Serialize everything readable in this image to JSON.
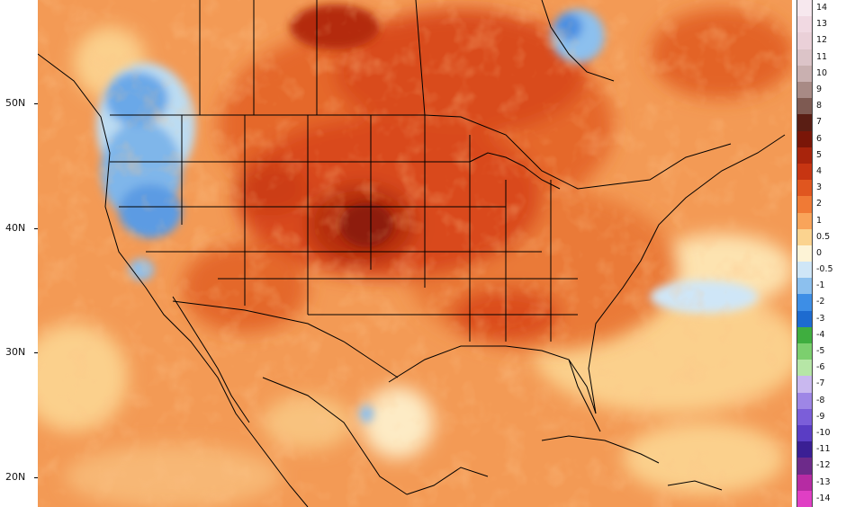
{
  "map": {
    "type": "temperature-anomaly",
    "region": "North America"
  },
  "lat_axis": {
    "labels": [
      {
        "text": "50N",
        "lat": 50
      },
      {
        "text": "40N",
        "lat": 40
      },
      {
        "text": "30N",
        "lat": 30
      },
      {
        "text": "20N",
        "lat": 20
      }
    ]
  },
  "colorbar": {
    "entries": [
      {
        "label": "14",
        "color": "#f7e8ee"
      },
      {
        "label": "13",
        "color": "#f1d9e2"
      },
      {
        "label": "12",
        "color": "#ead0d8"
      },
      {
        "label": "11",
        "color": "#dcc4c8"
      },
      {
        "label": "10",
        "color": "#c9b0b0"
      },
      {
        "label": "9",
        "color": "#a88a85"
      },
      {
        "label": "8",
        "color": "#7e5a52"
      },
      {
        "label": "7",
        "color": "#5a1e14"
      },
      {
        "label": "6",
        "color": "#7a1608"
      },
      {
        "label": "5",
        "color": "#a8240c"
      },
      {
        "label": "4",
        "color": "#c73512"
      },
      {
        "label": "3",
        "color": "#e0561f"
      },
      {
        "label": "2",
        "color": "#f07a35"
      },
      {
        "label": "1",
        "color": "#f9a45a"
      },
      {
        "label": "0.5",
        "color": "#fbd38f"
      },
      {
        "label": "0",
        "color": "#fdf3d6"
      },
      {
        "label": "-0.5",
        "color": "#cfe6f7"
      },
      {
        "label": "-1",
        "color": "#8cc0ee"
      },
      {
        "label": "-2",
        "color": "#3d8ee6"
      },
      {
        "label": "-3",
        "color": "#1d6bd0"
      },
      {
        "label": "-4",
        "color": "#3fae3f"
      },
      {
        "label": "-5",
        "color": "#7ccf6e"
      },
      {
        "label": "-6",
        "color": "#b6e6a6"
      },
      {
        "label": "-7",
        "color": "#c9b8ef"
      },
      {
        "label": "-8",
        "color": "#9e86e6"
      },
      {
        "label": "-9",
        "color": "#7b5ed9"
      },
      {
        "label": "-10",
        "color": "#5a3dc4"
      },
      {
        "label": "-11",
        "color": "#3a1f94"
      },
      {
        "label": "-12",
        "color": "#6d2a8a"
      },
      {
        "label": "-13",
        "color": "#b62ba3"
      },
      {
        "label": "-14",
        "color": "#e03fc4"
      }
    ]
  }
}
